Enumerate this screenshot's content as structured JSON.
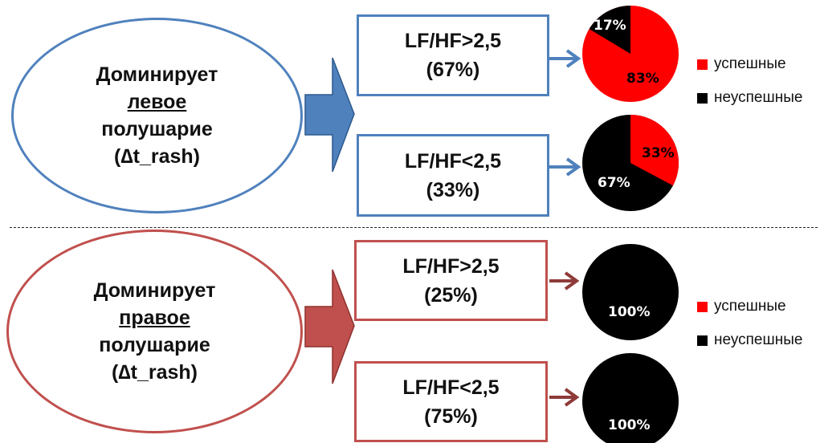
{
  "top": {
    "ellipse": {
      "line1": "Доминирует",
      "line2": "левое",
      "line3": "полушарие",
      "line4": "(∆t_rash)"
    },
    "box1": {
      "line1": "LF/HF>2,5",
      "line2": "(67%)"
    },
    "box2": {
      "line1": "LF/HF<2,5",
      "line2": "(33%)"
    },
    "pie1": {
      "success_pct": 83,
      "fail_pct": 17,
      "success_label": "83%",
      "fail_label": "17%"
    },
    "pie2": {
      "success_pct": 33,
      "fail_pct": 67,
      "success_label": "33%",
      "fail_label": "67%"
    },
    "legend": {
      "success": "успешные",
      "fail": "неуспешные"
    },
    "color": "#4f81bd"
  },
  "bottom": {
    "ellipse": {
      "line1": "Доминирует",
      "line2": "правое",
      "line3": "полушарие",
      "line4": "(∆t_rash)"
    },
    "box1": {
      "line1": "LF/HF>2,5",
      "line2": "(25%)"
    },
    "box2": {
      "line1": "LF/HF<2,5",
      "line2": "(75%)"
    },
    "pie1": {
      "fail_pct": 100,
      "fail_label": "100%"
    },
    "pie2": {
      "fail_pct": 100,
      "fail_label": "100%"
    },
    "legend": {
      "success": "успешные",
      "fail": "неуспешные"
    },
    "color": "#c0504d"
  },
  "colors": {
    "success": "#ff0000",
    "fail": "#000000"
  }
}
